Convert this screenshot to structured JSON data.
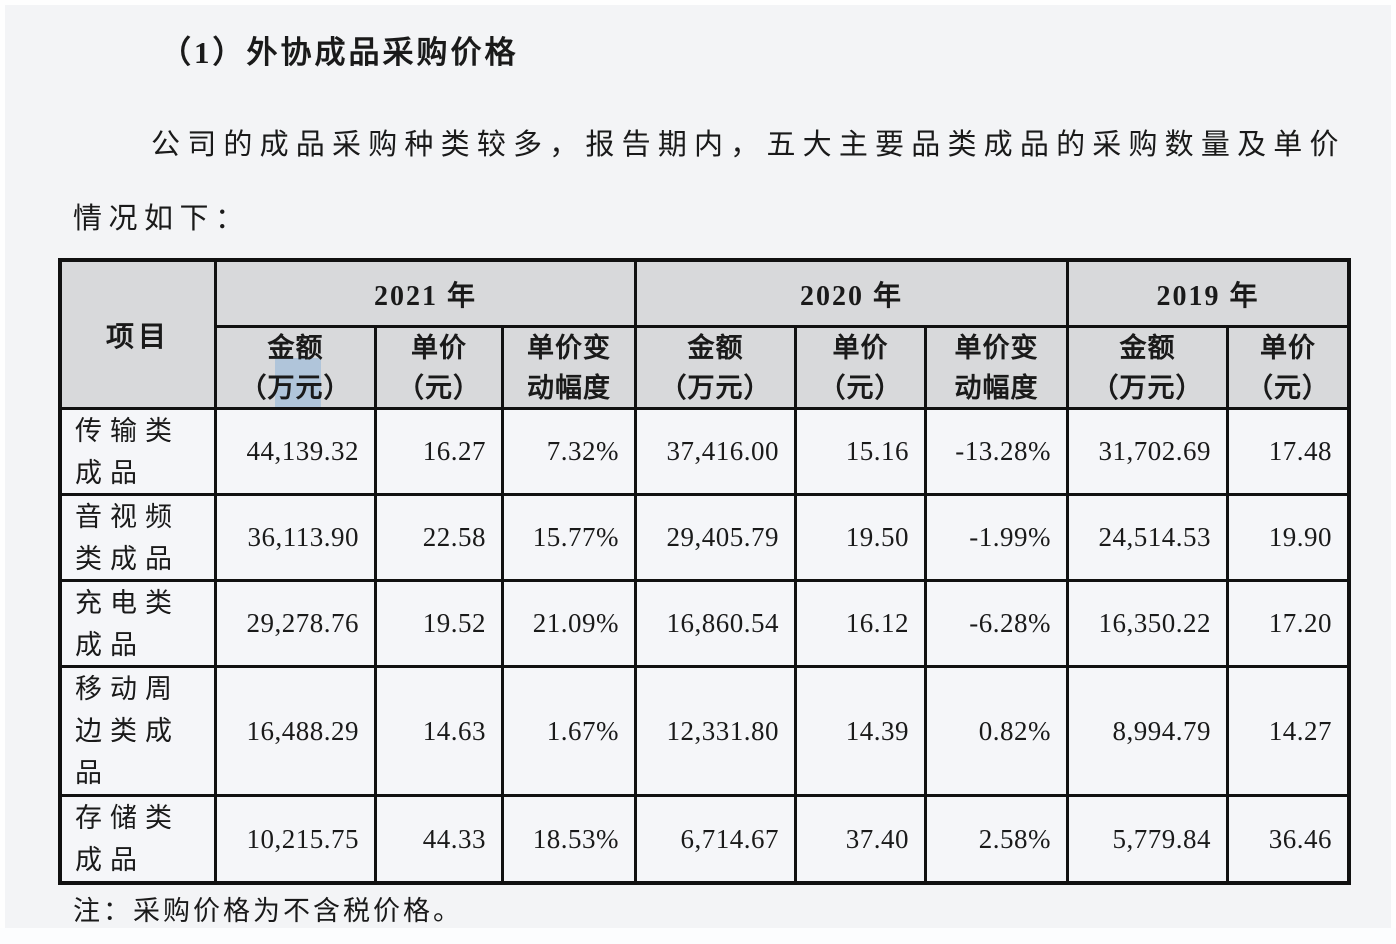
{
  "page": {
    "title": "（1）外协成品采购价格",
    "paragraph": "公司的成品采购种类较多，报告期内，五大主要品类成品的采购数量及单价情况如下：",
    "note": "注：采购价格为不含税价格。"
  },
  "table": {
    "item_header": "项目",
    "year_groups": [
      {
        "year": "2021 年",
        "cols": [
          "金额\n（万元）",
          "单价\n（元）",
          "单价变\n动幅度"
        ]
      },
      {
        "year": "2020 年",
        "cols": [
          "金额\n（万元）",
          "单价\n（元）",
          "单价变\n动幅度"
        ]
      },
      {
        "year": "2019 年",
        "cols": [
          "金额\n（万元）",
          "单价\n（元）"
        ]
      }
    ],
    "rows": [
      {
        "item": "传输类\n成品",
        "values": [
          "44,139.32",
          "16.27",
          "7.32%",
          "37,416.00",
          "15.16",
          "-13.28%",
          "31,702.69",
          "17.48"
        ]
      },
      {
        "item": "音视频\n类成品",
        "values": [
          "36,113.90",
          "22.58",
          "15.77%",
          "29,405.79",
          "19.50",
          "-1.99%",
          "24,514.53",
          "19.90"
        ]
      },
      {
        "item": "充电类\n成品",
        "values": [
          "29,278.76",
          "19.52",
          "21.09%",
          "16,860.54",
          "16.12",
          "-6.28%",
          "16,350.22",
          "17.20"
        ]
      },
      {
        "item": "移动周\n边类成\n品",
        "values": [
          "16,488.29",
          "14.63",
          "1.67%",
          "12,331.80",
          "14.39",
          "0.82%",
          "8,994.79",
          "14.27"
        ]
      },
      {
        "item": "存储类\n成品",
        "values": [
          "10,215.75",
          "44.33",
          "18.53%",
          "6,714.67",
          "37.40",
          "2.58%",
          "5,779.84",
          "36.46"
        ]
      }
    ]
  },
  "colors": {
    "page_bg": "#f3f4f6",
    "header_cell_bg": "#d8d9db",
    "data_cell_bg": "#f5f6f9",
    "table_border": "#111111",
    "text": "#1a1a1a",
    "selection_highlight": "#8fb4d8"
  }
}
